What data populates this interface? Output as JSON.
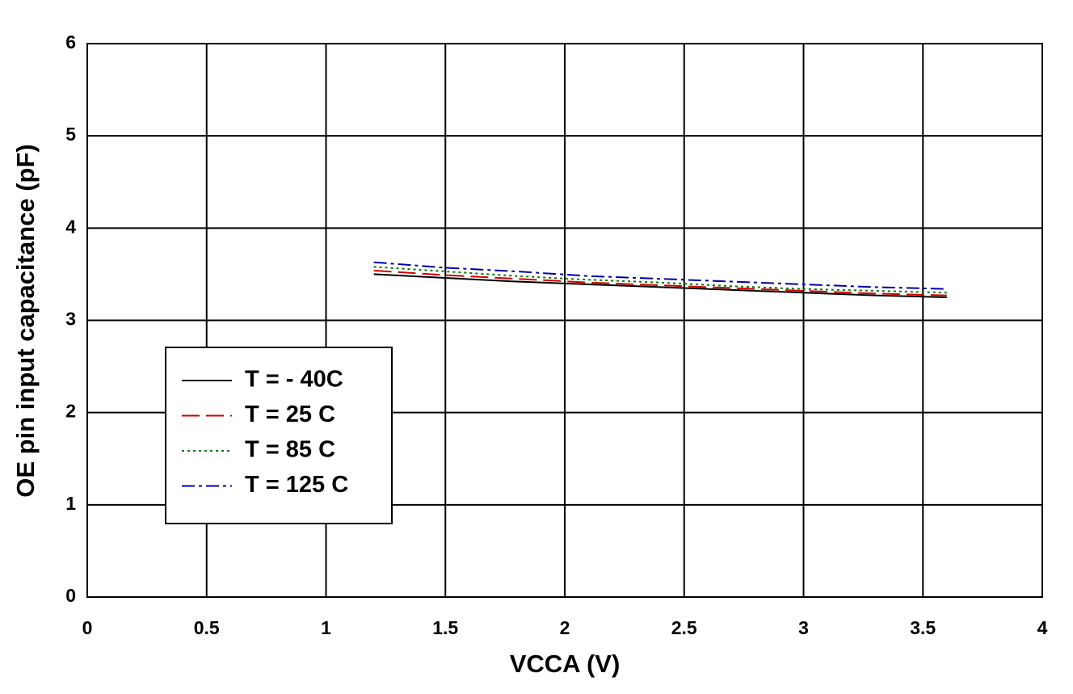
{
  "chart_data": {
    "type": "line",
    "xlabel": "VCCA (V)",
    "ylabel": "OE pin input capacitance (pF)",
    "x": [
      1.2,
      1.5,
      1.8,
      2.1,
      2.4,
      2.7,
      3.0,
      3.3,
      3.6
    ],
    "series": [
      {
        "name": "T = - 40C",
        "color": "#000000",
        "dash": "none",
        "values": [
          3.5,
          3.46,
          3.42,
          3.39,
          3.36,
          3.33,
          3.3,
          3.27,
          3.25
        ]
      },
      {
        "name": "T = 25 C",
        "color": "#cc0000",
        "dash": "22 8",
        "values": [
          3.54,
          3.49,
          3.45,
          3.41,
          3.38,
          3.35,
          3.32,
          3.29,
          3.27
        ]
      },
      {
        "name": "T = 85 C",
        "color": "#007700",
        "dash": "3 4",
        "values": [
          3.58,
          3.53,
          3.48,
          3.44,
          3.41,
          3.37,
          3.34,
          3.32,
          3.3
        ]
      },
      {
        "name": "T = 125 C",
        "color": "#0000aa",
        "dash": "16 5 4 5",
        "values": [
          3.63,
          3.57,
          3.53,
          3.48,
          3.45,
          3.42,
          3.39,
          3.36,
          3.34
        ]
      }
    ],
    "xlim": [
      0,
      4
    ],
    "xticks": [
      0,
      0.5,
      1,
      1.5,
      2,
      2.5,
      3,
      3.5,
      4
    ],
    "ylim": [
      0,
      6
    ],
    "yticks": [
      0,
      1,
      2,
      3,
      4,
      5,
      6
    ],
    "grid": true,
    "legend": "lower-left"
  }
}
